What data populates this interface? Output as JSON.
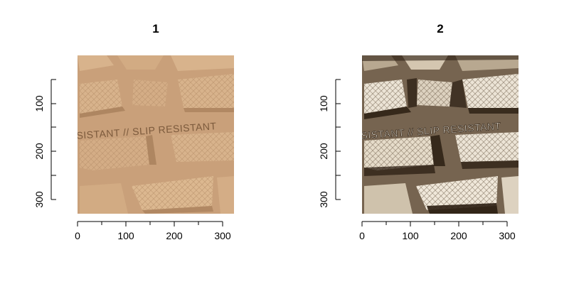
{
  "panels": [
    {
      "title": "1",
      "image": {
        "description_tag": "shoe-sole-tread",
        "text": "SISTANT // SLIP RESISTANT",
        "tone": "tan"
      },
      "x_ticks": [
        "0",
        "100",
        "200",
        "300"
      ],
      "y_ticks": [
        "100",
        "200",
        "300"
      ]
    },
    {
      "title": "2",
      "image": {
        "description_tag": "shoe-sole-tread-enhanced",
        "text": "SISTANT // SLIP RESISTANT",
        "tone": "sepia-high-contrast"
      },
      "x_ticks": [
        "0",
        "100",
        "200",
        "300"
      ],
      "y_ticks": [
        "100",
        "200",
        "300"
      ]
    }
  ],
  "colors": {
    "panel1_base": "#c9a07a",
    "panel1_light": "#d8b38c",
    "panel1_dark": "#9c7450",
    "panel2_base": "#cbbfae",
    "panel2_light": "#ece4d6",
    "panel2_dark": "#2b1e12"
  }
}
